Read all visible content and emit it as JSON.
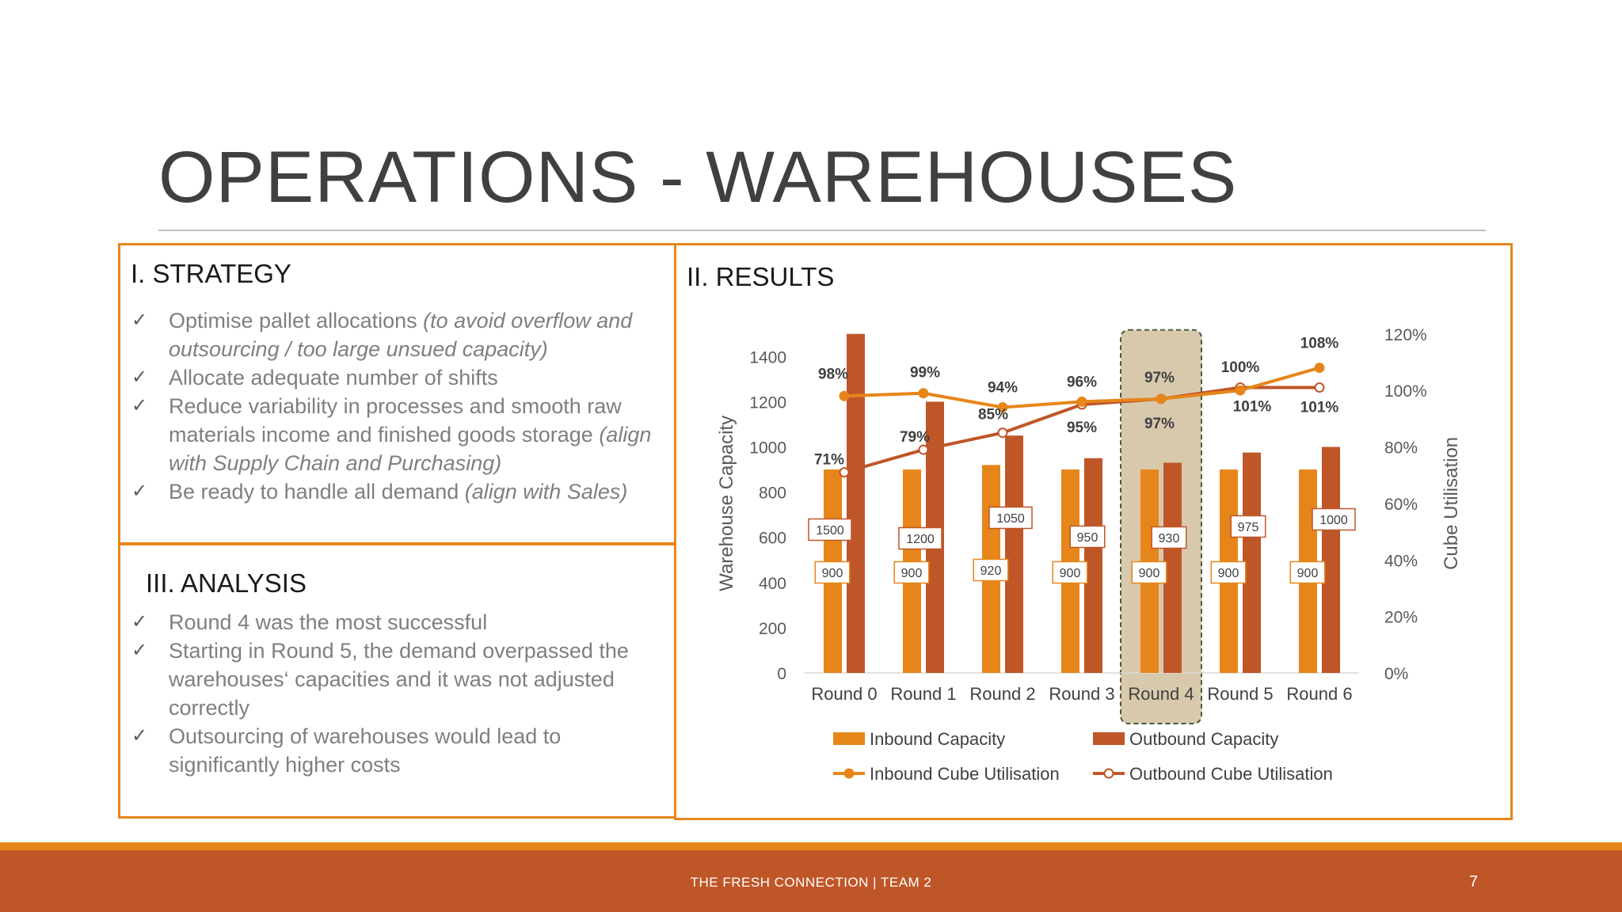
{
  "slide": {
    "title": "OPERATIONS - WAREHOUSES",
    "footer": "THE FRESH CONNECTION  |   TEAM 2",
    "page_number": "7"
  },
  "strategy": {
    "heading": "I. STRATEGY",
    "items": [
      {
        "text": "Optimise pallet allocations ",
        "note": "(to avoid overflow and outsourcing / too large unsued capacity)"
      },
      {
        "text": "Allocate adequate number of shifts",
        "note": ""
      },
      {
        "text": "Reduce variability in processes and smooth raw materials income and finished goods storage ",
        "note": "(align with Supply Chain and Purchasing)"
      },
      {
        "text": "Be ready to handle all demand ",
        "note": "(align with Sales)"
      }
    ]
  },
  "analysis": {
    "heading": "III. ANALYSIS",
    "items": [
      {
        "text": "Round 4 was the most successful"
      },
      {
        "text": "Starting in Round 5, the demand overpassed the warehouses‘ capacities and it was not adjusted correctly"
      },
      {
        "text": "Outsourcing of warehouses would lead to significantly higher costs"
      }
    ]
  },
  "results": {
    "heading": "II. RESULTS"
  },
  "check_symbol": "✓",
  "colors": {
    "accent_orange": "#e6861a",
    "accent_rust": "#bf5628",
    "inbound_bar": "#e6861a",
    "outbound_bar": "#bf5628",
    "highlight": "#d8c9ad"
  },
  "chart_data": {
    "type": "bar",
    "categories": [
      "Round 0",
      "Round 1",
      "Round 2",
      "Round 3",
      "Round 4",
      "Round 5",
      "Round 6"
    ],
    "series": [
      {
        "name": "Inbound Capacity",
        "kind": "bar",
        "axis": "left",
        "values": [
          900,
          900,
          920,
          900,
          900,
          900,
          900
        ]
      },
      {
        "name": "Outbound Capacity",
        "kind": "bar",
        "axis": "left",
        "values": [
          1500,
          1200,
          1050,
          950,
          930,
          975,
          1000
        ]
      },
      {
        "name": "Inbound Cube Utilisation",
        "kind": "line",
        "axis": "right",
        "values": [
          98,
          99,
          94,
          96,
          97,
          100,
          108
        ]
      },
      {
        "name": "Outbound Cube Utilisation",
        "kind": "line",
        "axis": "right",
        "values": [
          71,
          79,
          85,
          95,
          97,
          101,
          101
        ]
      }
    ],
    "ylabel": "Warehouse Capacity",
    "y2label": "Cube Utilisation",
    "ylim": [
      0,
      1500
    ],
    "yticks": [
      0,
      200,
      400,
      600,
      800,
      1000,
      1200,
      1400
    ],
    "y2lim": [
      0,
      120
    ],
    "y2ticks": [
      "0%",
      "20%",
      "40%",
      "60%",
      "80%",
      "100%",
      "120%"
    ],
    "highlight_category": "Round 4",
    "legend": [
      "Inbound Capacity",
      "Outbound Capacity",
      "Inbound Cube Utilisation",
      "Outbound Cube Utilisation"
    ],
    "legend_position": "bottom"
  }
}
